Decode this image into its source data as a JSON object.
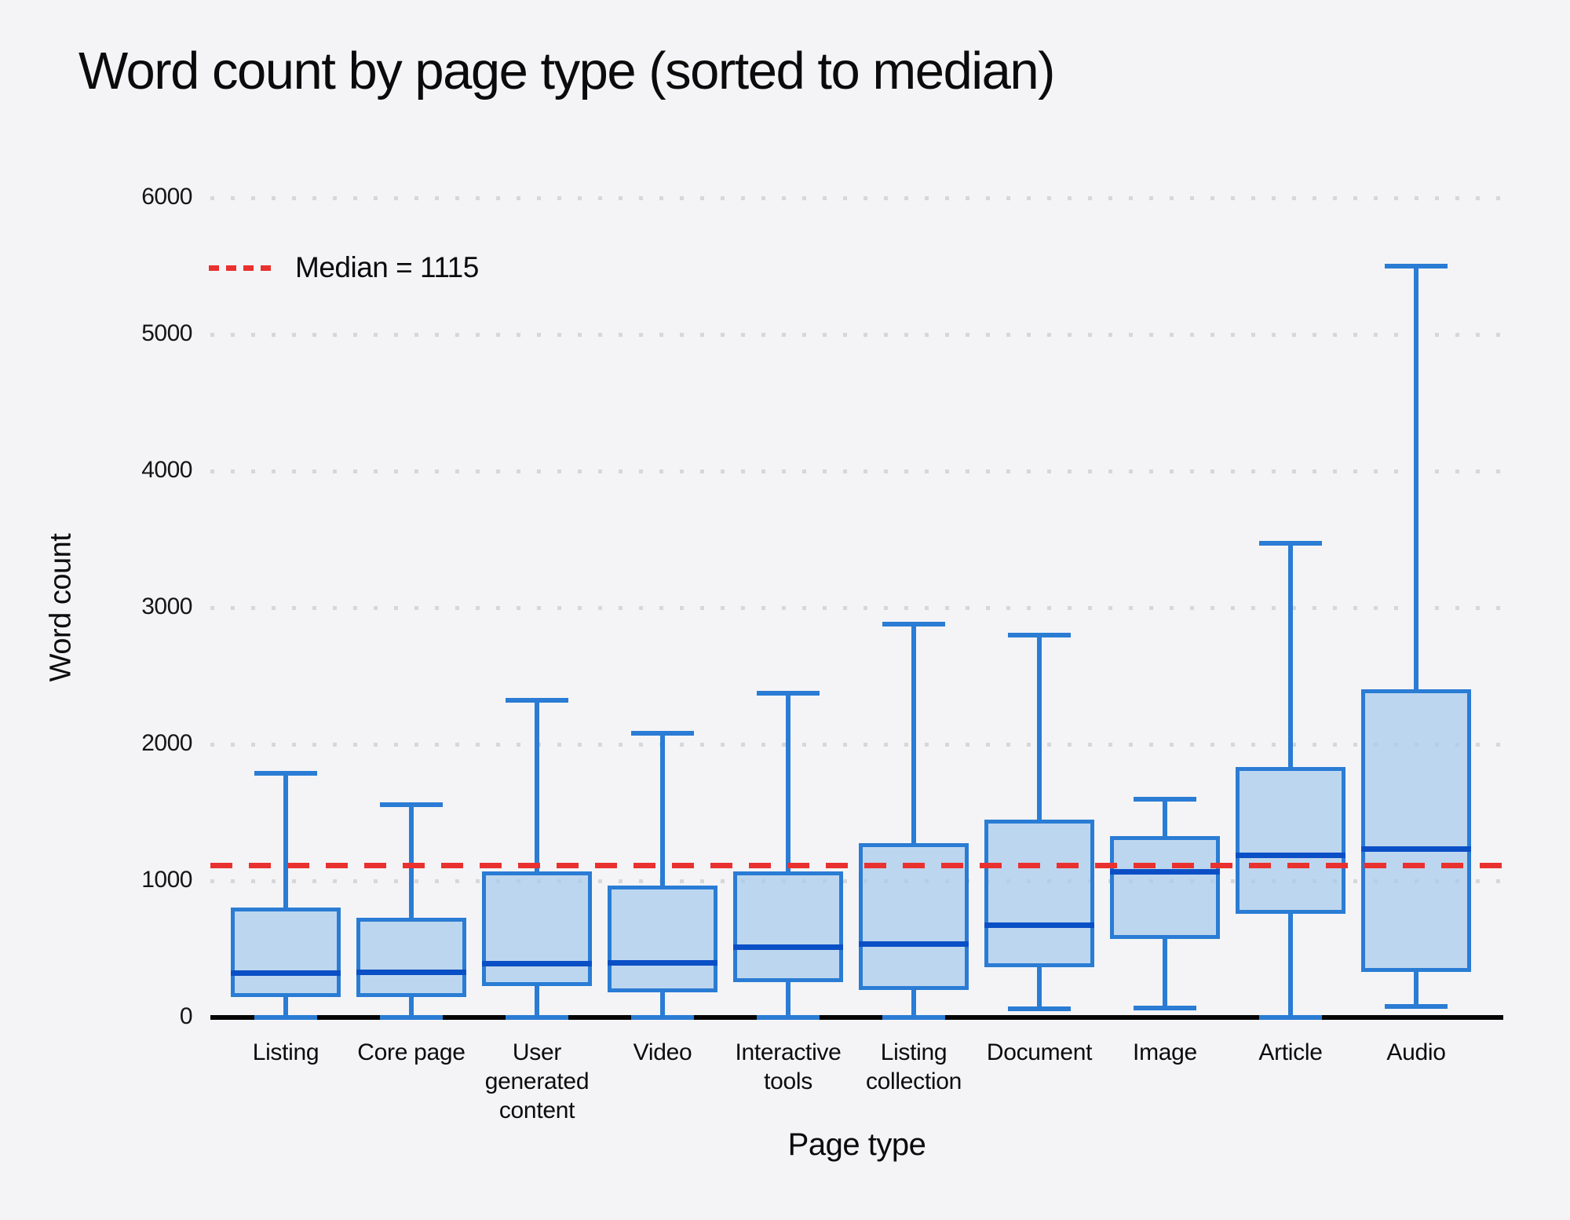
{
  "title": "Word count by page type (sorted to median)",
  "colors": {
    "background": "#f4f4f6",
    "box_border": "#2a7cd4",
    "box_fill": "rgba(168,202,236,0.72)",
    "box_median": "#0a4fc6",
    "overall_median_line": "#e9312f",
    "gridline": "#d6d7da",
    "axis_line": "#050505",
    "text": "#0c0c0d"
  },
  "chart_data": {
    "type": "boxplot",
    "title": "Word count by page type (sorted to median)",
    "xlabel": "Page type",
    "ylabel": "Word count",
    "ylim": [
      0,
      6000
    ],
    "y_ticks": [
      0,
      1000,
      2000,
      3000,
      4000,
      5000,
      6000
    ],
    "grid": "dotted horizontal",
    "legend_position": "upper left",
    "median_line": {
      "value": 1115,
      "label": "Median = 1115"
    },
    "categories": [
      "Listing",
      "Core page",
      "User generated content",
      "Video",
      "Interactive tools",
      "Listing collection",
      "Document",
      "Image",
      "Article",
      "Audio"
    ],
    "boxes": [
      {
        "category": "Listing",
        "low": 0,
        "q1": 150,
        "median": 330,
        "q3": 805,
        "high": 1790
      },
      {
        "category": "Core page",
        "low": 0,
        "q1": 150,
        "median": 335,
        "q3": 730,
        "high": 1560
      },
      {
        "category": "User generated content",
        "low": 0,
        "q1": 230,
        "median": 395,
        "q3": 1070,
        "high": 2320
      },
      {
        "category": "Video",
        "low": 0,
        "q1": 185,
        "median": 400,
        "q3": 965,
        "high": 2080
      },
      {
        "category": "Interactive tools",
        "low": 0,
        "q1": 260,
        "median": 520,
        "q3": 1070,
        "high": 2375
      },
      {
        "category": "Listing collection",
        "low": 0,
        "q1": 200,
        "median": 540,
        "q3": 1275,
        "high": 2880
      },
      {
        "category": "Document",
        "low": 65,
        "q1": 370,
        "median": 680,
        "q3": 1450,
        "high": 2800
      },
      {
        "category": "Image",
        "low": 70,
        "q1": 575,
        "median": 1070,
        "q3": 1325,
        "high": 1600
      },
      {
        "category": "Article",
        "low": 0,
        "q1": 760,
        "median": 1190,
        "q3": 1835,
        "high": 3470
      },
      {
        "category": "Audio",
        "low": 80,
        "q1": 335,
        "median": 1235,
        "q3": 2405,
        "high": 5500
      }
    ]
  }
}
